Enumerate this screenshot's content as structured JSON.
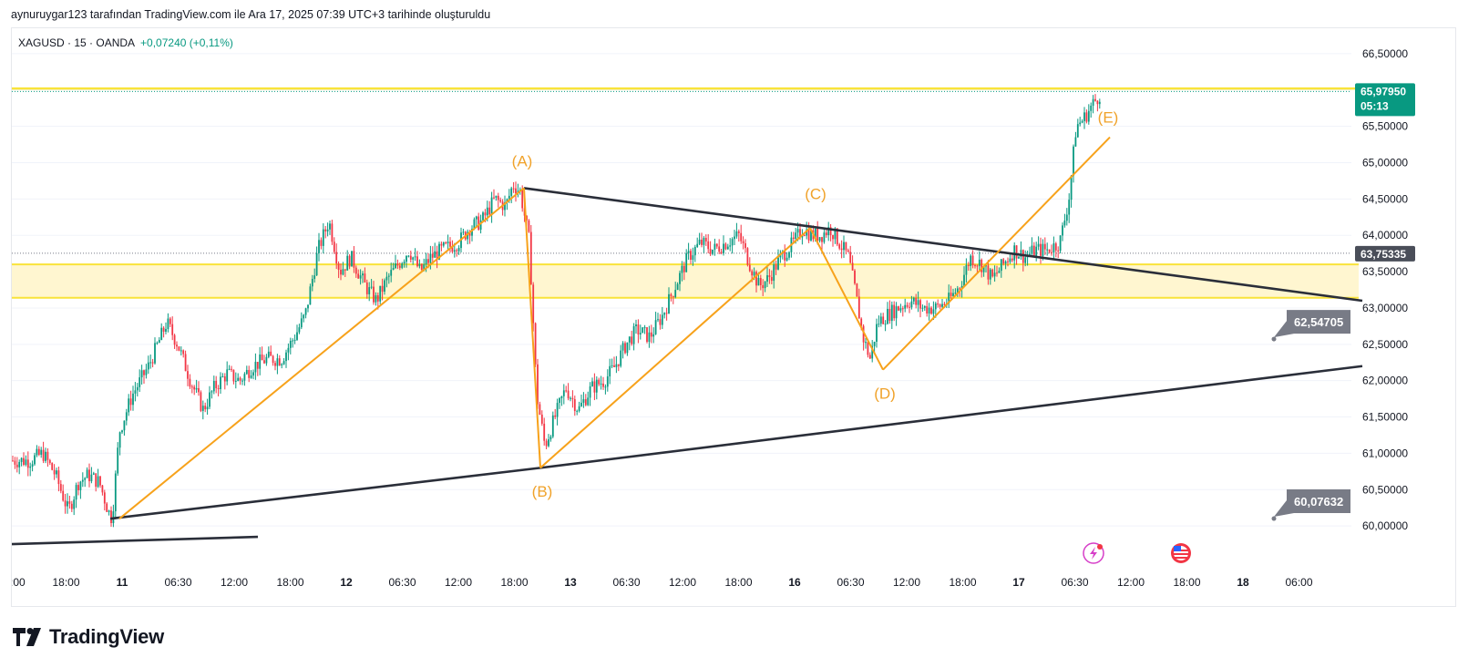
{
  "header": {
    "caption": "aynuruygar123 tarafından TradingView.com ile Ara 17, 2025 07:39 UTC+3 tarihinde oluşturuldu"
  },
  "legend": {
    "symbol": "XAGUSD · 15 · OANDA",
    "change": "+0,07240 (+0,11%)"
  },
  "brand": {
    "name": "TradingView"
  },
  "colors": {
    "up": "#089981",
    "down": "#f23645",
    "wave": "#f7a21b",
    "trendline": "#2a2e39",
    "zone_fill": "#fff6d0",
    "zone_line": "#f9e33a",
    "price_tag": "#089981",
    "level_tag": "#4a4e59",
    "callout": "#787b86"
  },
  "icons": {
    "event_1": "lightning-icon",
    "event_2": "us-flag-icon"
  },
  "chart_data": {
    "type": "candlestick",
    "title": "XAGUSD · 15 · OANDA",
    "ylim": [
      59.5,
      66.8
    ],
    "y_ticks": [
      "66,50000",
      "66,00000",
      "65,50000",
      "65,00000",
      "64,50000",
      "64,00000",
      "63,50000",
      "63,00000",
      "62,50000",
      "62,00000",
      "61,50000",
      "61,00000",
      "60,50000",
      "60,00000"
    ],
    "y_tick_values": [
      66.5,
      66.0,
      65.5,
      65.0,
      64.5,
      64.0,
      63.5,
      63.0,
      62.5,
      62.0,
      61.5,
      61.0,
      60.5,
      60.0
    ],
    "x_ticks": [
      ":00",
      "18:00",
      "11",
      "06:30",
      "12:00",
      "18:00",
      "12",
      "06:30",
      "12:00",
      "18:00",
      "13",
      "06:30",
      "12:00",
      "18:00",
      "16",
      "06:30",
      "12:00",
      "18:00",
      "17",
      "06:30",
      "12:00",
      "18:00",
      "18",
      "06:00"
    ],
    "x_tick_bold": [
      false,
      false,
      true,
      false,
      false,
      false,
      true,
      false,
      false,
      false,
      true,
      false,
      false,
      false,
      true,
      false,
      false,
      false,
      true,
      false,
      false,
      false,
      true,
      false
    ],
    "price_path": [
      [
        0,
        60.9
      ],
      [
        20,
        60.9
      ],
      [
        34,
        61.0
      ],
      [
        48,
        60.7
      ],
      [
        62,
        60.2
      ],
      [
        73,
        60.6
      ],
      [
        84,
        60.7
      ],
      [
        96,
        60.6
      ],
      [
        106,
        60.2
      ],
      [
        110,
        60.1
      ],
      [
        118,
        61.3
      ],
      [
        132,
        61.8
      ],
      [
        150,
        62.2
      ],
      [
        170,
        62.8
      ],
      [
        182,
        62.5
      ],
      [
        196,
        62.0
      ],
      [
        210,
        61.6
      ],
      [
        222,
        61.9
      ],
      [
        236,
        62.1
      ],
      [
        250,
        62.0
      ],
      [
        264,
        62.2
      ],
      [
        280,
        62.3
      ],
      [
        296,
        62.3
      ],
      [
        310,
        62.6
      ],
      [
        322,
        62.9
      ],
      [
        336,
        63.8
      ],
      [
        348,
        64.2
      ],
      [
        360,
        63.5
      ],
      [
        372,
        63.7
      ],
      [
        388,
        63.3
      ],
      [
        400,
        63.1
      ],
      [
        412,
        63.4
      ],
      [
        424,
        63.6
      ],
      [
        436,
        63.8
      ],
      [
        448,
        63.5
      ],
      [
        460,
        63.7
      ],
      [
        472,
        63.8
      ],
      [
        490,
        63.9
      ],
      [
        502,
        64.1
      ],
      [
        516,
        64.2
      ],
      [
        530,
        64.5
      ],
      [
        542,
        64.4
      ],
      [
        550,
        64.7
      ],
      [
        558,
        64.6
      ],
      [
        568,
        63.9
      ],
      [
        576,
        61.8
      ],
      [
        585,
        61.1
      ],
      [
        596,
        61.5
      ],
      [
        608,
        61.9
      ],
      [
        622,
        61.6
      ],
      [
        636,
        61.9
      ],
      [
        650,
        62.0
      ],
      [
        662,
        62.2
      ],
      [
        674,
        62.5
      ],
      [
        686,
        62.7
      ],
      [
        700,
        62.6
      ],
      [
        714,
        62.9
      ],
      [
        728,
        63.3
      ],
      [
        742,
        63.7
      ],
      [
        756,
        63.9
      ],
      [
        770,
        63.8
      ],
      [
        784,
        63.9
      ],
      [
        798,
        64.0
      ],
      [
        810,
        63.6
      ],
      [
        820,
        63.3
      ],
      [
        830,
        63.4
      ],
      [
        844,
        63.7
      ],
      [
        858,
        63.9
      ],
      [
        868,
        64.1
      ],
      [
        878,
        64.0
      ],
      [
        888,
        64.0
      ],
      [
        898,
        64.1
      ],
      [
        908,
        63.9
      ],
      [
        918,
        63.7
      ],
      [
        926,
        63.2
      ],
      [
        934,
        62.6
      ],
      [
        942,
        62.3
      ],
      [
        950,
        62.8
      ],
      [
        960,
        62.9
      ],
      [
        972,
        63.0
      ],
      [
        986,
        63.1
      ],
      [
        1000,
        63.0
      ],
      [
        1014,
        63.0
      ],
      [
        1028,
        63.1
      ],
      [
        1040,
        63.3
      ],
      [
        1052,
        63.7
      ],
      [
        1064,
        63.6
      ],
      [
        1076,
        63.4
      ],
      [
        1088,
        63.6
      ],
      [
        1100,
        63.8
      ],
      [
        1112,
        63.7
      ],
      [
        1124,
        63.8
      ],
      [
        1136,
        63.8
      ],
      [
        1150,
        63.9
      ],
      [
        1160,
        64.5
      ],
      [
        1168,
        65.5
      ],
      [
        1176,
        65.6
      ],
      [
        1186,
        65.8
      ],
      [
        1196,
        65.98
      ]
    ],
    "trendlines": [
      {
        "name": "lower-support",
        "points": [
          [
            108,
            60.1
          ],
          [
            580,
            60.8
          ],
          [
            1482,
            62.2
          ]
        ]
      },
      {
        "name": "upper-resistance",
        "points": [
          [
            562,
            64.65
          ],
          [
            1482,
            63.1
          ]
        ]
      },
      {
        "name": "old-support",
        "points": [
          [
            0,
            59.75
          ],
          [
            270,
            59.85
          ]
        ]
      }
    ],
    "wave_lines": [
      [
        [
          118,
          60.1
        ],
        [
          562,
          64.65
        ]
      ],
      [
        [
          562,
          64.65
        ],
        [
          580,
          60.8
        ]
      ],
      [
        [
          580,
          60.8
        ],
        [
          876,
          64.1
        ]
      ],
      [
        [
          876,
          64.1
        ],
        [
          956,
          62.15
        ]
      ],
      [
        [
          956,
          62.15
        ],
        [
          1205,
          65.35
        ]
      ]
    ],
    "wave_labels": [
      {
        "label": "(A)",
        "x": 560,
        "y": 64.95
      },
      {
        "label": "(B)",
        "x": 582,
        "y": 60.4
      },
      {
        "label": "(C)",
        "x": 882,
        "y": 64.5
      },
      {
        "label": "(D)",
        "x": 958,
        "y": 61.75
      },
      {
        "label": "(E)",
        "x": 1203,
        "y": 65.55
      }
    ],
    "zones": [
      {
        "name": "resistance-line",
        "y1": 66.02,
        "y2": 66.02
      },
      {
        "name": "support-zone",
        "y1": 63.14,
        "y2": 63.6
      }
    ],
    "current_price": {
      "value": "65,97950",
      "time": "05:13",
      "y": 65.9795
    },
    "level_marker": {
      "value": "63,75335",
      "y": 63.75335
    },
    "callouts": [
      {
        "text": "62,54705",
        "y": 62.54705
      },
      {
        "text": "60,07632",
        "y": 60.07632
      }
    ]
  }
}
